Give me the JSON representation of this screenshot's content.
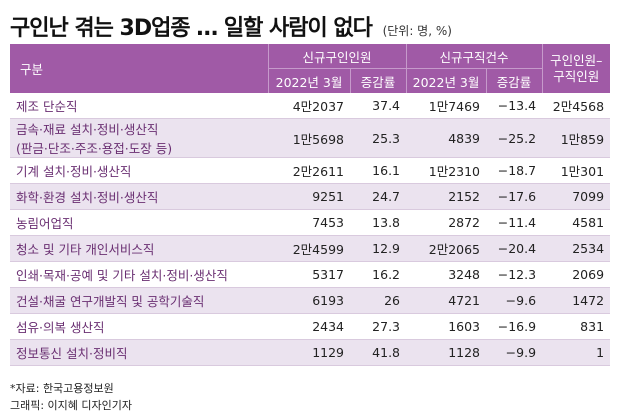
{
  "title": "구인난 겪는 3D업종 … 일할 사람이 없다",
  "unit": "(단위: 명, %)",
  "header": {
    "col_category": "구분",
    "group_job_offers": "신규구인인원",
    "group_job_seekers": "신규구직건수",
    "col_ratio": "구인인원–구직인원",
    "sub_value": "2022년 3월",
    "sub_rate": "증감률"
  },
  "rows": [
    {
      "label": "제조 단순직",
      "label2": "",
      "offers": "4만2037",
      "offers_rate": "37.4",
      "seekers": "1만7469",
      "seekers_rate": "−13.4",
      "gap": "2만4568"
    },
    {
      "label": "금속·재료 설치·정비·생산직",
      "label2": "(판금·단조·주조·용접·도장 등)",
      "offers": "1만5698",
      "offers_rate": "25.3",
      "seekers": "4839",
      "seekers_rate": "−25.2",
      "gap": "1만859"
    },
    {
      "label": "기계 설치·정비·생산직",
      "label2": "",
      "offers": "2만2611",
      "offers_rate": "16.1",
      "seekers": "1만2310",
      "seekers_rate": "−18.7",
      "gap": "1만301"
    },
    {
      "label": "화학·환경 설치·정비·생산직",
      "label2": "",
      "offers": "9251",
      "offers_rate": "24.7",
      "seekers": "2152",
      "seekers_rate": "−17.6",
      "gap": "7099"
    },
    {
      "label": "농림어업직",
      "label2": "",
      "offers": "7453",
      "offers_rate": "13.8",
      "seekers": "2872",
      "seekers_rate": "−11.4",
      "gap": "4581"
    },
    {
      "label": "청소 및 기타 개인서비스직",
      "label2": "",
      "offers": "2만4599",
      "offers_rate": "12.9",
      "seekers": "2만2065",
      "seekers_rate": "−20.4",
      "gap": "2534"
    },
    {
      "label": "인쇄·목재·공예 및 기타 설치·정비·생산직",
      "label2": "",
      "offers": "5317",
      "offers_rate": "16.2",
      "seekers": "3248",
      "seekers_rate": "−12.3",
      "gap": "2069"
    },
    {
      "label": "건설·채굴 연구개발직 및 공학기술직",
      "label2": "",
      "offers": "6193",
      "offers_rate": "26",
      "seekers": "4721",
      "seekers_rate": "−9.6",
      "gap": "1472"
    },
    {
      "label": "섬유·의복 생산직",
      "label2": "",
      "offers": "2434",
      "offers_rate": "27.3",
      "seekers": "1603",
      "seekers_rate": "−16.9",
      "gap": "831"
    },
    {
      "label": "정보통신 설치·정비직",
      "label2": "",
      "offers": "1129",
      "offers_rate": "41.8",
      "seekers": "1128",
      "seekers_rate": "−9.9",
      "gap": "1"
    }
  ],
  "footer": {
    "source": "*자료: 한국고용정보원",
    "graphic": "그래픽: 이지혜 디자인기자"
  },
  "colors": {
    "header_bg": "#a05aa6",
    "label_text": "#6a2f72",
    "stripe_bg": "#ebe3ef"
  }
}
